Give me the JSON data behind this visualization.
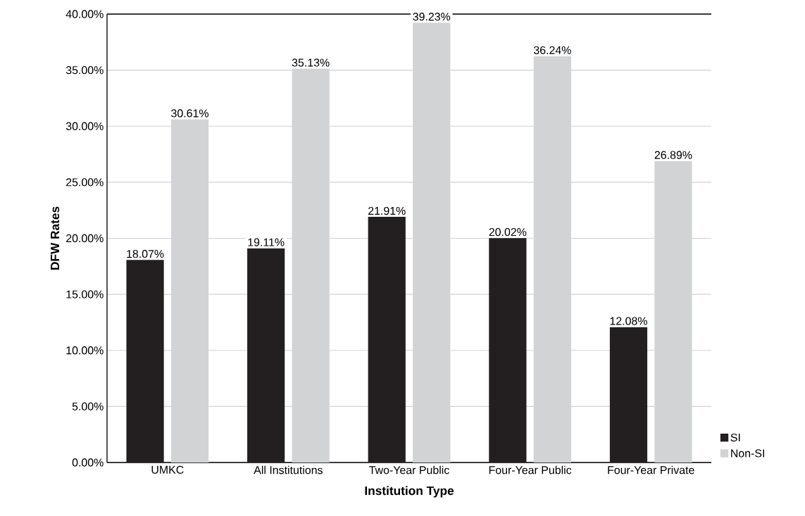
{
  "chart_data": {
    "type": "bar",
    "xlabel": "Institution Type",
    "ylabel": "DFW Rates",
    "categories": [
      "UMKC",
      "All Institutions",
      "Two-Year Public",
      "Four-Year Public",
      "Four-Year Private"
    ],
    "series": [
      {
        "name": "SI",
        "color": "#231f20",
        "values": [
          18.07,
          19.11,
          21.91,
          20.02,
          12.08
        ],
        "value_labels": [
          "18.07%",
          "19.11%",
          "21.91%",
          "20.02%",
          "12.08%"
        ]
      },
      {
        "name": "Non-SI",
        "color": "#d1d3d4",
        "values": [
          30.61,
          35.13,
          39.23,
          36.24,
          26.89
        ],
        "value_labels": [
          "30.61%",
          "35.13%",
          "39.23%",
          "36.24%",
          "26.89%"
        ]
      }
    ],
    "ylim": [
      0,
      40
    ],
    "yticks": [
      {
        "value": 0,
        "label": "0.00%"
      },
      {
        "value": 5,
        "label": "5.00%"
      },
      {
        "value": 10,
        "label": "10.00%"
      },
      {
        "value": 15,
        "label": "15.00%"
      },
      {
        "value": 20,
        "label": "20.00%"
      },
      {
        "value": 25,
        "label": "25.00%"
      },
      {
        "value": 30,
        "label": "30.00%"
      },
      {
        "value": 35,
        "label": "35.00%"
      },
      {
        "value": 40,
        "label": "40.00%"
      }
    ],
    "grid": "y",
    "legend": "right"
  }
}
